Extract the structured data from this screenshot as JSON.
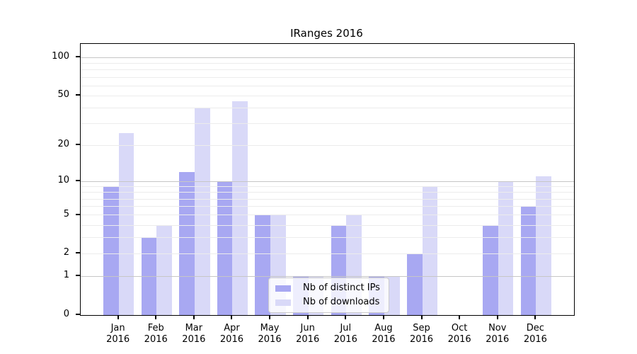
{
  "title": "IRanges 2016",
  "colors": {
    "ips_bar": "#a8a8f2",
    "downloads_bar": "#d9d9f8",
    "grid_minor": "#ececec",
    "grid_major": "#c6c6c6",
    "axis": "#000000"
  },
  "legend": {
    "items": [
      {
        "label": "Nb of distinct IPs",
        "series": "ips"
      },
      {
        "label": "Nb of downloads",
        "series": "downloads"
      }
    ]
  },
  "chart_data": {
    "type": "bar",
    "title": "IRanges 2016",
    "categories": [
      "Jan 2016",
      "Feb 2016",
      "Mar 2016",
      "Apr 2016",
      "May 2016",
      "Jun 2016",
      "Jul 2016",
      "Aug 2016",
      "Sep 2016",
      "Oct 2016",
      "Nov 2016",
      "Dec 2016"
    ],
    "series": [
      {
        "name": "Nb of distinct IPs",
        "color": "#a8a8f2",
        "values": [
          9,
          3,
          12,
          10,
          5,
          1,
          4,
          1,
          2,
          0,
          4,
          6
        ]
      },
      {
        "name": "Nb of downloads",
        "color": "#d9d9f8",
        "values": [
          25,
          4,
          40,
          45,
          5,
          1,
          5,
          1,
          9,
          0,
          10,
          11
        ]
      }
    ],
    "xlabel": "",
    "ylabel": "",
    "y_scale": "log1p",
    "ylim": [
      0,
      128
    ],
    "y_ticks": [
      "100",
      "50",
      "20",
      "10",
      "5",
      "2",
      "1",
      "0"
    ],
    "grid": {
      "major_values": [
        1,
        10,
        100
      ],
      "minor_values": [
        2,
        3,
        4,
        5,
        6,
        7,
        8,
        9,
        20,
        30,
        40,
        50,
        60,
        70,
        80,
        90
      ]
    },
    "legend_position": "bottom-center-inside",
    "grid_on": true
  }
}
